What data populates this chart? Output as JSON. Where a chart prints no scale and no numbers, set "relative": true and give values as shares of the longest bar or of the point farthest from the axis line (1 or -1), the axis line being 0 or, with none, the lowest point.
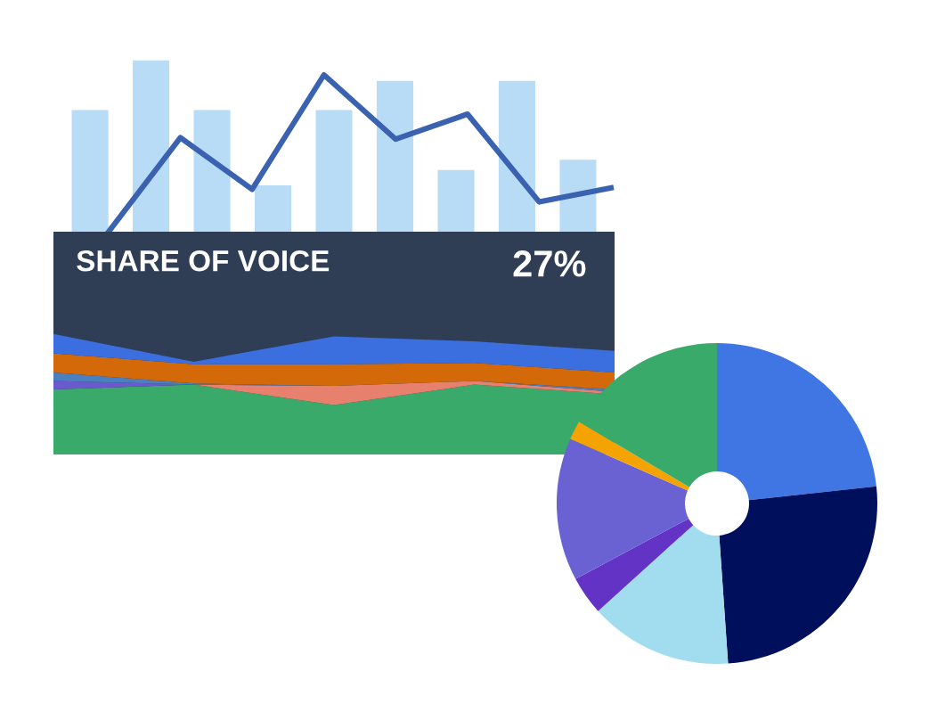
{
  "chart_data": [
    {
      "type": "bar",
      "relative": true,
      "categories": [
        null,
        null,
        null,
        null,
        null,
        null,
        null,
        null,
        null
      ],
      "color": "#b9dcf6",
      "values": [
        0.71,
        1,
        0.71,
        0.27,
        0.71,
        0.88,
        0.36,
        0.88,
        0.42
      ]
    },
    {
      "type": "line",
      "relative": true,
      "categories": [
        null,
        null,
        null,
        null,
        null,
        null,
        null,
        null
      ],
      "color": "#3a62b0",
      "values": [
        0,
        0.6,
        0.27,
        1,
        0.59,
        0.75,
        0.19,
        0.28
      ]
    },
    {
      "type": "area",
      "stacked": true,
      "relative": true,
      "title": "SHARE OF VOICE",
      "annotations": [
        "27%"
      ],
      "categories": [
        null,
        null,
        null,
        null,
        null
      ],
      "series": [
        {
          "color": "#3aaa6a",
          "values": [
            0.54,
            0.58,
            0.41,
            0.58,
            0.5
          ]
        },
        {
          "color": "#e8806e",
          "values": [
            0,
            0,
            0.16,
            0.03,
            0.02
          ]
        },
        {
          "color": "#6a5acd",
          "values": [
            0.07,
            0,
            0,
            0,
            0
          ]
        },
        {
          "color": "#4a7fc0",
          "values": [
            0.07,
            0.01,
            0,
            0,
            0.02
          ]
        },
        {
          "color": "#d4690a",
          "values": [
            0.16,
            0.16,
            0.18,
            0.15,
            0.14
          ]
        },
        {
          "color": "#3b6fe0",
          "values": [
            0.16,
            0.02,
            0.23,
            0.18,
            0.18
          ]
        }
      ]
    },
    {
      "type": "donut",
      "categories": [
        null,
        null,
        null,
        null,
        null,
        null,
        null
      ],
      "values": [
        23.3,
        25.6,
        14.4,
        3.9,
        14.4,
        1.9,
        16.5
      ],
      "colors": [
        "#3f76e4",
        "#000f5c",
        "#a2dcef",
        "#6233c4",
        "#6a62d3",
        "#f5a300",
        "#3aaa6a"
      ]
    }
  ]
}
